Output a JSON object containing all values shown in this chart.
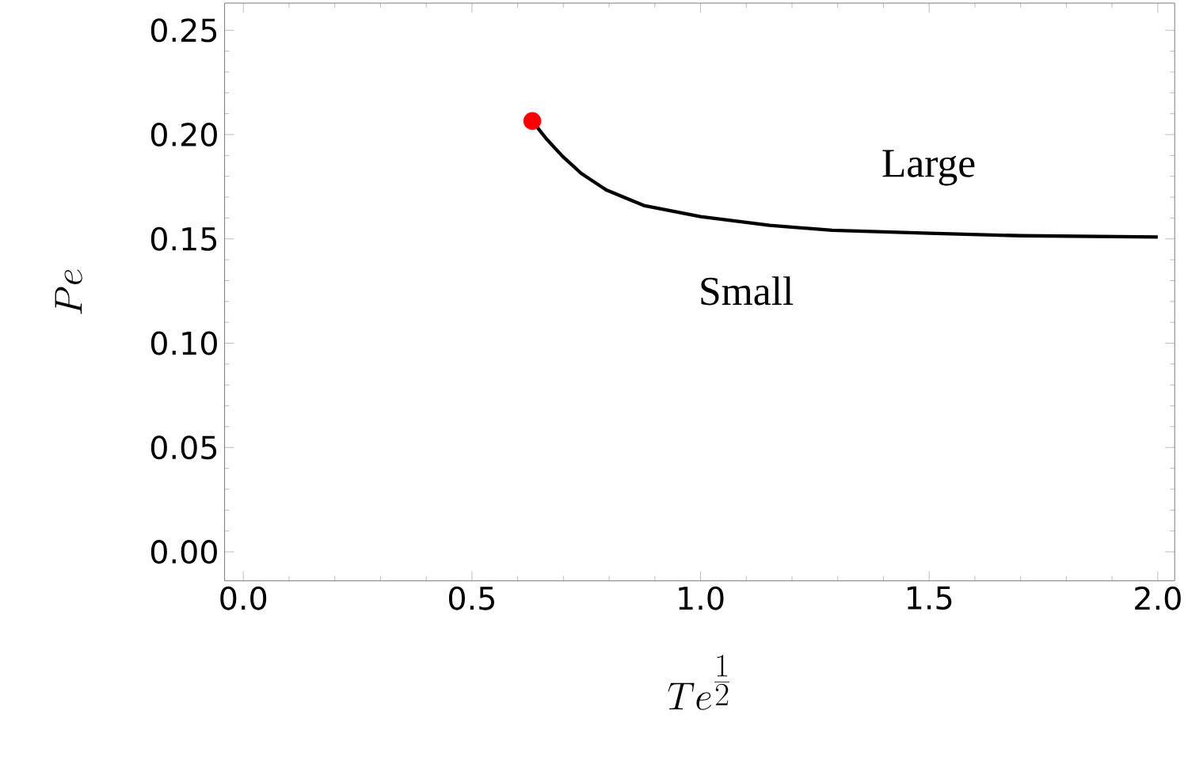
{
  "chart_data": {
    "type": "line",
    "xlabel": "Te^{\\frac{1}{2}}",
    "ylabel": "Pe",
    "xlim": [
      -0.041,
      2.037
    ],
    "ylim": [
      -0.0139,
      0.263
    ],
    "xticks": [
      {
        "value": 0,
        "label": "0.0"
      },
      0.5,
      {
        "value": 1,
        "label": "1.0"
      },
      1.5,
      {
        "value": 2,
        "label": "2.0"
      }
    ],
    "yticks": [
      {
        "value": 0,
        "label": "0.00"
      },
      0.05,
      {
        "value": 0.1,
        "label": "0.10"
      },
      0.15,
      {
        "value": 0.2,
        "label": "0.20"
      },
      0.25
    ],
    "grid": false,
    "series": [
      {
        "color": "#000000",
        "marker": "none",
        "line_style": "solid",
        "x": [
          0.632,
          0.663,
          0.698,
          0.739,
          0.794,
          0.876,
          1.0,
          1.151,
          1.288,
          1.5,
          1.701,
          2.0
        ],
        "values": [
          0.2065,
          0.1979,
          0.1896,
          0.1814,
          0.1734,
          0.166,
          0.1607,
          0.1565,
          0.1541,
          0.1527,
          0.1515,
          0.1509
        ]
      },
      {
        "type": "scatter",
        "color": "#ff0000",
        "marker": "circle",
        "x": [
          0.632
        ],
        "values": [
          0.2065
        ]
      }
    ],
    "annotations": [
      "Large",
      "Small"
    ]
  }
}
